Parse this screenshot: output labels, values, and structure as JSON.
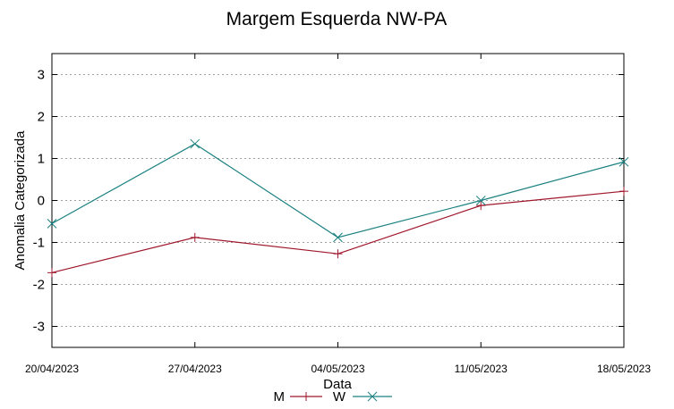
{
  "chart_data": {
    "type": "line",
    "title": "Margem Esquerda NW-PA",
    "xlabel": "Data",
    "ylabel": "Anomalia Categorizada",
    "categories": [
      "20/04/2023",
      "27/04/2023",
      "04/05/2023",
      "11/05/2023",
      "18/05/2023"
    ],
    "ylim": [
      -3.5,
      3.5
    ],
    "yticks": [
      -3,
      -2,
      -1,
      0,
      1,
      2,
      3
    ],
    "grid": true,
    "legend": "bottom-center",
    "series": [
      {
        "name": "M",
        "values": [
          -1.72,
          -0.88,
          -1.27,
          -0.12,
          0.22
        ],
        "color": "#a0182c",
        "marker": "plus"
      },
      {
        "name": "W",
        "values": [
          -0.55,
          1.35,
          -0.88,
          0.0,
          0.92
        ],
        "color": "#1a8080",
        "marker": "cross"
      }
    ]
  }
}
